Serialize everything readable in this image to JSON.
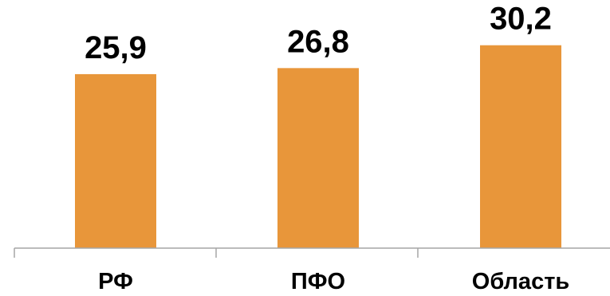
{
  "chart_data": {
    "type": "bar",
    "categories": [
      "РФ",
      "ПФО",
      "Область"
    ],
    "values": [
      25.9,
      26.8,
      30.2
    ],
    "value_labels": [
      "25,9",
      "26,8",
      "30,2"
    ],
    "title": "",
    "xlabel": "",
    "ylabel": "",
    "ylim": [
      0,
      35
    ],
    "grid": false,
    "legend": "none",
    "bar_color": "#E8963A",
    "axis_color": "#A6A6A6"
  }
}
